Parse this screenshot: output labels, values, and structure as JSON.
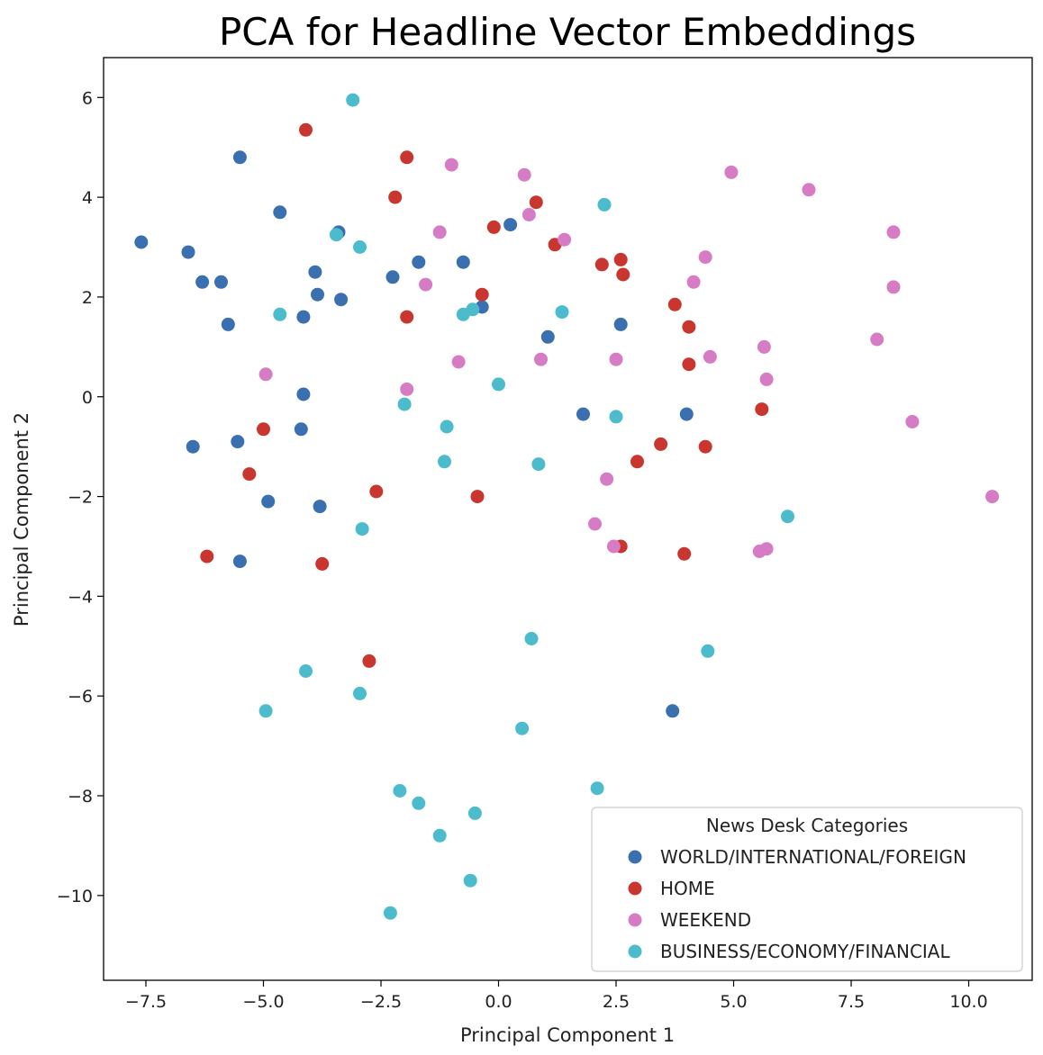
{
  "chart_data": {
    "type": "scatter",
    "title": "PCA for Headline Vector Embeddings",
    "xlabel": "Principal Component 1",
    "ylabel": "Principal Component 2",
    "xlim": [
      -8.4,
      11.35
    ],
    "ylim": [
      -11.7,
      6.8
    ],
    "xticks": [
      -7.5,
      -5.0,
      -2.5,
      0.0,
      2.5,
      5.0,
      7.5,
      10.0
    ],
    "xtick_labels": [
      "−7.5",
      "−5.0",
      "−2.5",
      "0.0",
      "2.5",
      "5.0",
      "7.5",
      "10.0"
    ],
    "yticks": [
      6,
      4,
      2,
      0,
      -2,
      -4,
      -6,
      -8,
      -10
    ],
    "ytick_labels": [
      "6",
      "4",
      "2",
      "0",
      "−2",
      "−4",
      "−6",
      "−8",
      "−10"
    ],
    "grid": false,
    "legend": {
      "title": "News Desk Categories",
      "position": "lower-right"
    },
    "series": [
      {
        "name": "WORLD/INTERNATIONAL/FOREIGN",
        "color": "#3a6fb0",
        "points": [
          [
            -7.6,
            3.1
          ],
          [
            -5.5,
            4.8
          ],
          [
            -6.6,
            2.9
          ],
          [
            -6.3,
            2.3
          ],
          [
            -5.9,
            2.3
          ],
          [
            -5.75,
            1.45
          ],
          [
            -4.65,
            3.7
          ],
          [
            -3.9,
            2.5
          ],
          [
            -3.85,
            2.05
          ],
          [
            -4.15,
            1.6
          ],
          [
            -3.35,
            1.95
          ],
          [
            -3.4,
            3.3
          ],
          [
            -2.25,
            2.4
          ],
          [
            -1.7,
            2.7
          ],
          [
            -0.75,
            2.7
          ],
          [
            -0.35,
            1.8
          ],
          [
            0.25,
            3.45
          ],
          [
            1.05,
            1.2
          ],
          [
            2.6,
            1.45
          ],
          [
            -4.15,
            0.05
          ],
          [
            -4.2,
            -0.65
          ],
          [
            -5.55,
            -0.9
          ],
          [
            -6.5,
            -1.0
          ],
          [
            -4.9,
            -2.1
          ],
          [
            -3.8,
            -2.2
          ],
          [
            -5.5,
            -3.3
          ],
          [
            1.8,
            -0.35
          ],
          [
            4.0,
            -0.35
          ],
          [
            3.7,
            -6.3
          ]
        ]
      },
      {
        "name": "HOME",
        "color": "#c9362f",
        "points": [
          [
            -4.1,
            5.35
          ],
          [
            -1.95,
            4.8
          ],
          [
            -2.2,
            4.0
          ],
          [
            -0.1,
            3.4
          ],
          [
            0.8,
            3.9
          ],
          [
            1.2,
            3.05
          ],
          [
            2.2,
            2.65
          ],
          [
            2.6,
            2.75
          ],
          [
            2.65,
            2.45
          ],
          [
            -0.35,
            2.05
          ],
          [
            -1.95,
            1.6
          ],
          [
            3.75,
            1.85
          ],
          [
            4.05,
            1.4
          ],
          [
            4.05,
            0.65
          ],
          [
            5.6,
            -0.25
          ],
          [
            -5.0,
            -0.65
          ],
          [
            -5.3,
            -1.55
          ],
          [
            -2.6,
            -1.9
          ],
          [
            -0.45,
            -2.0
          ],
          [
            2.95,
            -1.3
          ],
          [
            3.45,
            -0.95
          ],
          [
            4.4,
            -1.0
          ],
          [
            -6.2,
            -3.2
          ],
          [
            -3.75,
            -3.35
          ],
          [
            2.6,
            -3.0
          ],
          [
            3.95,
            -3.15
          ],
          [
            -2.75,
            -5.3
          ]
        ]
      },
      {
        "name": "WEEKEND",
        "color": "#d67cc4",
        "points": [
          [
            -1.0,
            4.65
          ],
          [
            0.55,
            4.45
          ],
          [
            0.65,
            3.65
          ],
          [
            1.4,
            3.15
          ],
          [
            -1.25,
            3.3
          ],
          [
            -1.55,
            2.25
          ],
          [
            4.95,
            4.5
          ],
          [
            6.6,
            4.15
          ],
          [
            8.4,
            3.3
          ],
          [
            8.4,
            2.2
          ],
          [
            4.4,
            2.8
          ],
          [
            4.15,
            2.3
          ],
          [
            8.05,
            1.15
          ],
          [
            5.65,
            1.0
          ],
          [
            4.5,
            0.8
          ],
          [
            5.7,
            0.35
          ],
          [
            8.8,
            -0.5
          ],
          [
            -4.95,
            0.45
          ],
          [
            -1.95,
            0.15
          ],
          [
            -0.85,
            0.7
          ],
          [
            0.9,
            0.75
          ],
          [
            2.5,
            0.75
          ],
          [
            2.3,
            -1.65
          ],
          [
            2.05,
            -2.55
          ],
          [
            2.45,
            -3.0
          ],
          [
            5.55,
            -3.1
          ],
          [
            5.7,
            -3.05
          ],
          [
            10.5,
            -2.0
          ]
        ]
      },
      {
        "name": "BUSINESS/ECONOMY/FINANCIAL",
        "color": "#4cbccc",
        "points": [
          [
            -3.1,
            5.95
          ],
          [
            2.25,
            3.85
          ],
          [
            -3.45,
            3.25
          ],
          [
            -2.95,
            3.0
          ],
          [
            -4.65,
            1.65
          ],
          [
            -0.55,
            1.75
          ],
          [
            -0.75,
            1.65
          ],
          [
            1.35,
            1.7
          ],
          [
            0.0,
            0.25
          ],
          [
            -2.0,
            -0.15
          ],
          [
            -1.1,
            -0.6
          ],
          [
            2.5,
            -0.4
          ],
          [
            -1.15,
            -1.3
          ],
          [
            0.85,
            -1.35
          ],
          [
            -2.9,
            -2.65
          ],
          [
            6.15,
            -2.4
          ],
          [
            0.7,
            -4.85
          ],
          [
            4.45,
            -5.1
          ],
          [
            -4.1,
            -5.5
          ],
          [
            -2.95,
            -5.95
          ],
          [
            -4.95,
            -6.3
          ],
          [
            0.5,
            -6.65
          ],
          [
            -2.1,
            -7.9
          ],
          [
            -1.7,
            -8.15
          ],
          [
            -0.5,
            -8.35
          ],
          [
            2.1,
            -7.85
          ],
          [
            -1.25,
            -8.8
          ],
          [
            -0.6,
            -9.7
          ],
          [
            -2.3,
            -10.35
          ]
        ]
      }
    ]
  }
}
